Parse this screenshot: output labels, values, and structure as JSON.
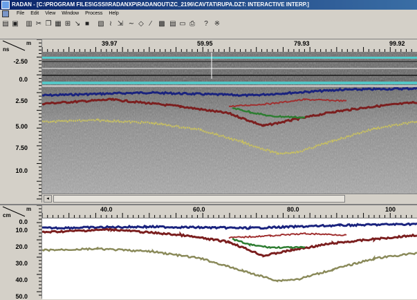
{
  "window": {
    "title": "RADAN - [C:\\PROGRAM FILES\\GSSI\\RADANXP\\RADANOUT\\ZC_2196\\CAVTAT\\RUPA.DZT: INTERACTIVE INTERP.]"
  },
  "menu": [
    "File",
    "Edit",
    "View",
    "Window",
    "Process",
    "Help"
  ],
  "toolbar_icons": [
    "open-icon",
    "save-icon",
    "print-icon",
    "cut-icon",
    "copy-icon",
    "paste-icon",
    "new-view-icon",
    "arrow-icon",
    "stop-icon",
    "select-icon",
    "wave-icon",
    "cursor-icon",
    "curve-icon",
    "eraser-icon",
    "pen-icon",
    "grid-icon",
    "layers-icon",
    "monitor-icon",
    "print-preview-icon",
    "help-icon",
    "about-icon"
  ],
  "top_panel": {
    "x_unit": "m",
    "y_unit": "ns",
    "x_ticks": [
      "39.97",
      "59.95",
      "79.93",
      "99.92"
    ],
    "y_ticks": [
      "-2.50",
      "0.0",
      "2.50",
      "5.00",
      "7.50",
      "10.0"
    ]
  },
  "bottom_panel": {
    "x_unit": "m",
    "y_unit": "cm",
    "x_ticks": [
      "40.0",
      "60.0",
      "80.0",
      "100"
    ],
    "y_ticks": [
      "0.0",
      "10.0",
      "20.0",
      "30.0",
      "40.0",
      "50.0"
    ]
  },
  "colors": {
    "blue_layer": "#1a237e",
    "red_layer": "#7b1f1f",
    "green_layer": "#2e7d32",
    "yellow_layer": "#c8c060",
    "cyan_band": "#4fd5d5"
  }
}
